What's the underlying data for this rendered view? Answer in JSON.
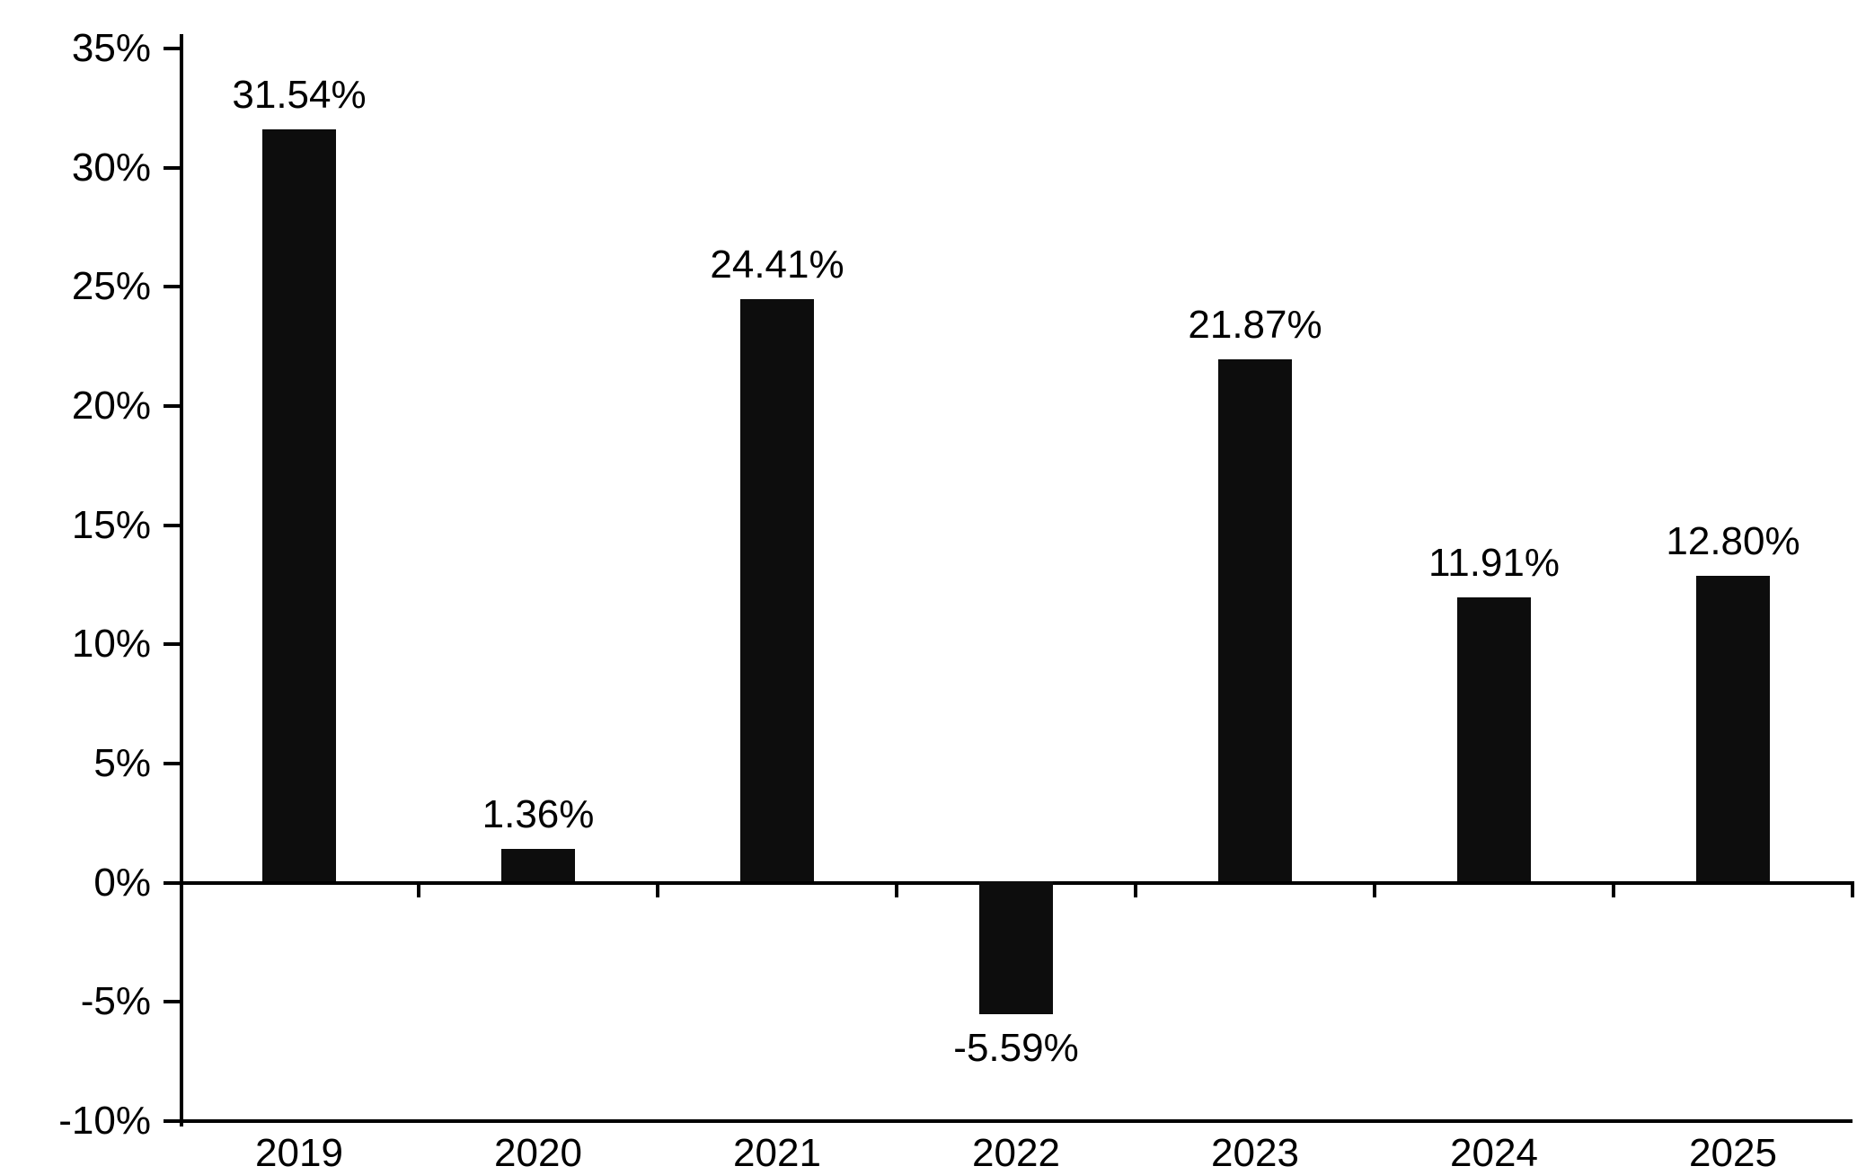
{
  "chart_data": {
    "type": "bar",
    "title": "",
    "xlabel": "",
    "ylabel": "",
    "categories": [
      "2019",
      "2020",
      "2021",
      "2022",
      "2023",
      "2024",
      "2025"
    ],
    "values": [
      31.54,
      1.36,
      24.41,
      -5.59,
      21.87,
      11.91,
      12.8
    ],
    "value_labels": [
      "31.54%",
      "1.36%",
      "24.41%",
      "-5.59%",
      "21.87%",
      "11.91%",
      "12.80%"
    ],
    "ylim": [
      -10,
      35
    ],
    "ytick_step": 5,
    "ytick_labels": [
      "35%",
      "30%",
      "25%",
      "20%",
      "15%",
      "10%",
      "5%",
      "0%",
      "-5%",
      "-10%"
    ],
    "bar_color": "#0d0d0d",
    "axis_color": "#000000",
    "background_color": "#ffffff",
    "grid": false,
    "legend": false,
    "zero_baseline": true
  }
}
